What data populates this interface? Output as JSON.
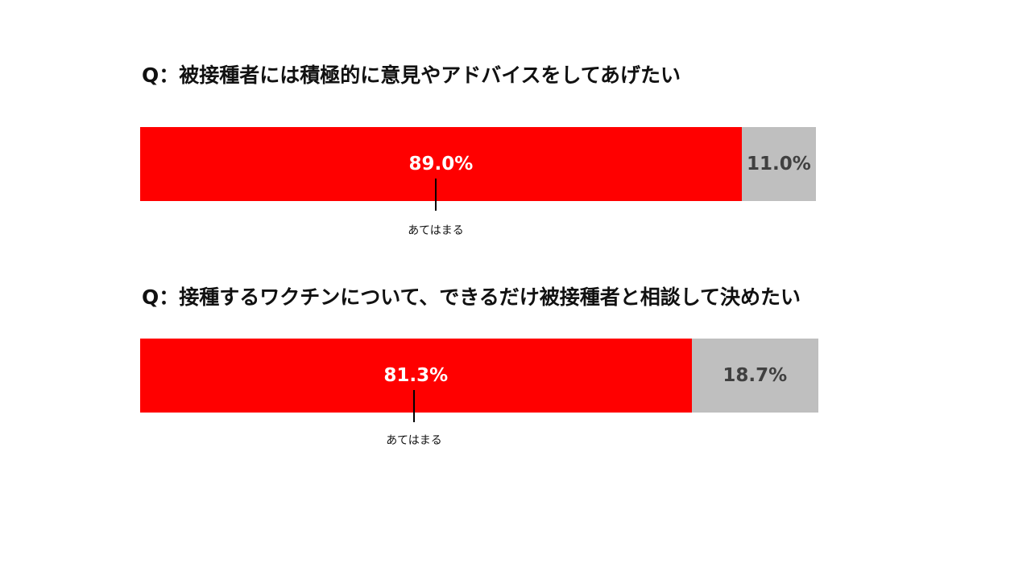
{
  "colors": {
    "yes": "#ff0000",
    "no": "#bfbfbf",
    "yes_text": "#ffffff",
    "no_text": "#404040"
  },
  "chart_data": [
    {
      "type": "bar",
      "orientation": "horizontal-stacked",
      "title": "Q：被接種者には積極的に意見やアドバイスをしてあげたい",
      "series": [
        {
          "name": "あてはまる",
          "value": 89.0,
          "label": "89.0%"
        },
        {
          "name": "",
          "value": 11.0,
          "label": "11.0%"
        }
      ],
      "xlim": [
        0,
        100
      ],
      "annotation": "あてはまる"
    },
    {
      "type": "bar",
      "orientation": "horizontal-stacked",
      "title": "Q：接種するワクチンについて、できるだけ被接種者と相談して決めたい",
      "series": [
        {
          "name": "あてはまる",
          "value": 81.3,
          "label": "81.3%"
        },
        {
          "name": "",
          "value": 18.7,
          "label": "18.7%"
        }
      ],
      "xlim": [
        0,
        100
      ],
      "annotation": "あてはまる"
    }
  ]
}
